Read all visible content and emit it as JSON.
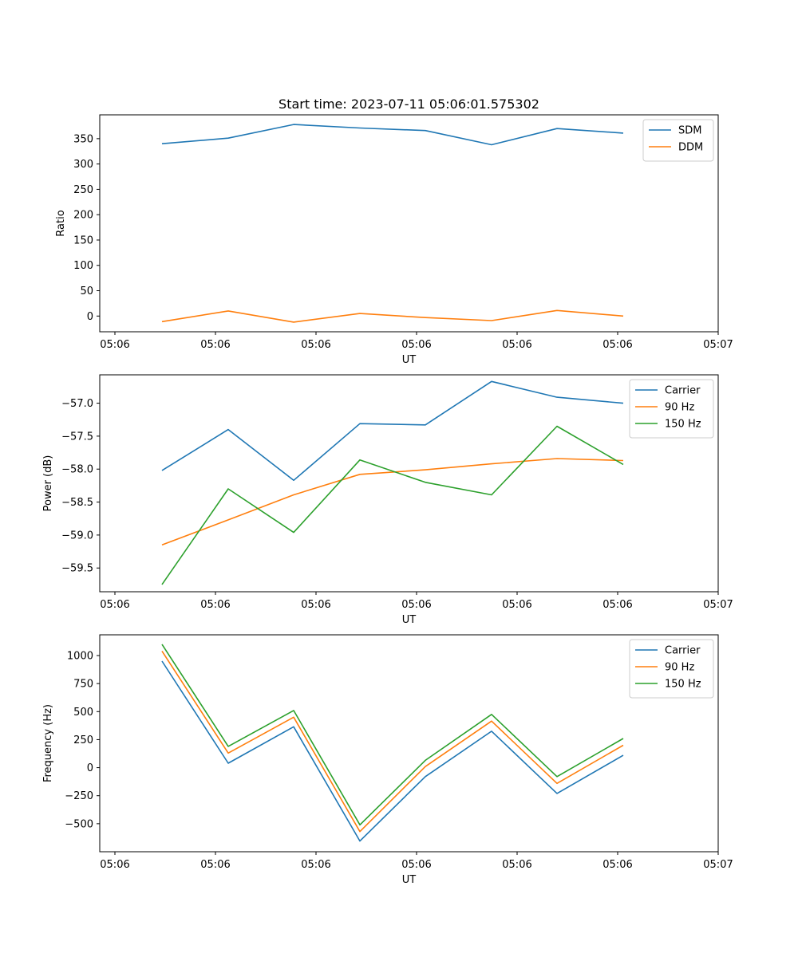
{
  "chart_data": [
    {
      "type": "line",
      "title": "Start time: 2023-07-11 05:06:01.575302",
      "xlabel": "UT",
      "ylabel": "Ratio",
      "x_ticks": [
        "05:06",
        "05:06",
        "05:06",
        "05:06",
        "05:06",
        "05:06",
        "05:07"
      ],
      "y_ticks": [
        "0",
        "50",
        "100",
        "150",
        "200",
        "250",
        "300",
        "350"
      ],
      "y_tick_values": [
        0,
        50,
        100,
        150,
        200,
        250,
        300,
        350
      ],
      "ylim": [
        -31,
        397
      ],
      "legend": "top-right",
      "series": [
        {
          "name": "SDM",
          "color": "#1f77b4",
          "values": [
            340,
            351,
            378,
            371,
            366,
            338,
            370,
            361
          ]
        },
        {
          "name": "DDM",
          "color": "#ff7f0e",
          "values": [
            -11,
            10,
            -12,
            5,
            -3,
            -9,
            11,
            0
          ]
        }
      ]
    },
    {
      "type": "line",
      "title": "",
      "xlabel": "UT",
      "ylabel": "Power (dB)",
      "x_ticks": [
        "05:06",
        "05:06",
        "05:06",
        "05:06",
        "05:06",
        "05:06",
        "05:07"
      ],
      "y_ticks": [
        "−59.5",
        "−59.0",
        "−58.5",
        "−58.0",
        "−57.5",
        "−57.0"
      ],
      "y_tick_values": [
        -59.5,
        -59.0,
        -58.5,
        -58.0,
        -57.5,
        -57.0
      ],
      "ylim": [
        -59.86,
        -56.57
      ],
      "legend": "top-right",
      "series": [
        {
          "name": "Carrier",
          "color": "#1f77b4",
          "values": [
            -58.02,
            -57.4,
            -58.17,
            -57.31,
            -57.33,
            -56.67,
            -56.91,
            -57.0
          ]
        },
        {
          "name": "90 Hz",
          "color": "#ff7f0e",
          "values": [
            -59.15,
            -58.77,
            -58.39,
            -58.08,
            -58.01,
            -57.92,
            -57.84,
            -57.87
          ]
        },
        {
          "name": "150 Hz",
          "color": "#2ca02c",
          "values": [
            -59.75,
            -58.3,
            -58.96,
            -57.86,
            -58.2,
            -58.39,
            -57.35,
            -57.93
          ]
        }
      ]
    },
    {
      "type": "line",
      "title": "",
      "xlabel": "UT",
      "ylabel": "Frequency (Hz)",
      "x_ticks": [
        "05:06",
        "05:06",
        "05:06",
        "05:06",
        "05:06",
        "05:06",
        "05:07"
      ],
      "y_ticks": [
        "−500",
        "−250",
        "0",
        "250",
        "500",
        "750",
        "1000"
      ],
      "y_tick_values": [
        -500,
        -250,
        0,
        250,
        500,
        750,
        1000
      ],
      "ylim": [
        -750,
        1185
      ],
      "legend": "top-right",
      "series": [
        {
          "name": "Carrier",
          "color": "#1f77b4",
          "values": [
            950,
            40,
            365,
            -655,
            -80,
            325,
            -230,
            110
          ]
        },
        {
          "name": "90 Hz",
          "color": "#ff7f0e",
          "values": [
            1040,
            130,
            450,
            -570,
            10,
            415,
            -140,
            200
          ]
        },
        {
          "name": "150 Hz",
          "color": "#2ca02c",
          "values": [
            1100,
            190,
            510,
            -510,
            65,
            475,
            -80,
            260
          ]
        }
      ]
    }
  ]
}
